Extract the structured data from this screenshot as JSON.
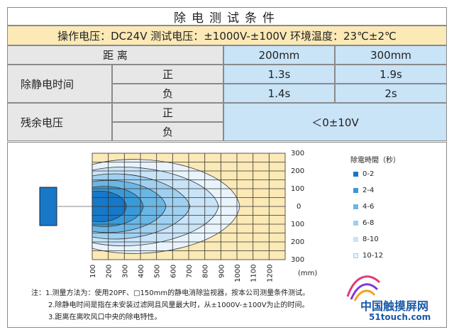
{
  "table": {
    "title": "除电测试条件",
    "conditions": "操作电压：DC24V  测试电压：±1000V-±100V  环境温度：23℃±2℃",
    "distance_label": "距 离",
    "col1": "200mm",
    "col2": "300mm",
    "row_static_time": "除静电时间",
    "positive": "正",
    "negative": "负",
    "pos_200": "1.3s",
    "pos_300": "1.9s",
    "neg_200": "1.4s",
    "neg_300": "2s",
    "row_residual": "残余电压",
    "residual_value": "＜0±10V"
  },
  "chart": {
    "x_ticks": [
      "100",
      "200",
      "300",
      "400",
      "500",
      "600",
      "700",
      "800",
      "900",
      "1000",
      "1100",
      "1200"
    ],
    "x_unit": "(mm)",
    "y_ticks": [
      "300",
      "200",
      "100",
      "0",
      "100",
      "200",
      "300"
    ],
    "legend_title": "除電時間（秒）",
    "legend": [
      {
        "label": "0-2",
        "color": "#1778c8"
      },
      {
        "label": "2-4",
        "color": "#3a9ad8"
      },
      {
        "label": "4-6",
        "color": "#6ab7e6"
      },
      {
        "label": "6-8",
        "color": "#9fd0f0"
      },
      {
        "label": "8-10",
        "color": "#c9e3f7"
      },
      {
        "label": "10-12",
        "color": "#e8f3fc"
      }
    ]
  },
  "chart_data": {
    "type": "contour",
    "x_ticks": [
      100,
      200,
      300,
      400,
      500,
      600,
      700,
      800,
      900,
      1000,
      1100,
      1200
    ],
    "x_unit": "(mm)",
    "y_ticks": [
      300,
      200,
      100,
      0,
      100,
      200,
      300
    ],
    "legend_title": "除電時間（秒）",
    "levels": [
      {
        "label": "0-2",
        "color": "#1778c8"
      },
      {
        "label": "2-4",
        "color": "#3a9ad8"
      },
      {
        "label": "4-6",
        "color": "#6ab7e6"
      },
      {
        "label": "6-8",
        "color": "#9fd0f0"
      },
      {
        "label": "8-10",
        "color": "#c9e3f7"
      },
      {
        "label": "10-12",
        "color": "#e8f3fc"
      }
    ]
  },
  "notes": {
    "line1": "注：1.测量方法为：使用20PF、□150mm的静电消除监视器，按本公司测量条件测试。",
    "line2": "2.除静电时间是指在未安装过滤网且风量最大时，从±1000V-±100V为止的时间。",
    "line3": "3.距离在离吹风口中央的除电特性。"
  },
  "watermark": {
    "text1": "中国触摸屏网",
    "text2": "51touch.com"
  }
}
